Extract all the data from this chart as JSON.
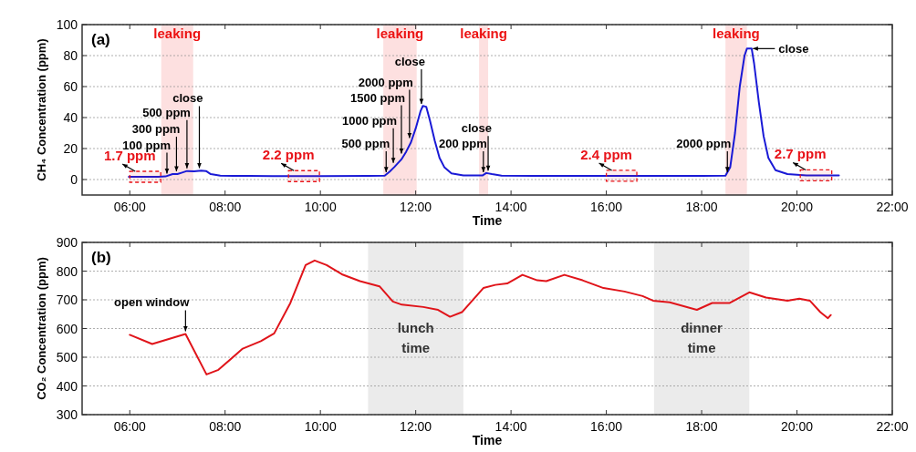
{
  "chart_data": [
    {
      "type": "line",
      "xlabel": "Time",
      "ylabel": "CH₄ Concentration (ppm)",
      "xlim": [
        5,
        22
      ],
      "ylim": [
        -10,
        100
      ],
      "xticks": [
        {
          "value": 6,
          "label": "06:00"
        },
        {
          "value": 8,
          "label": "08:00"
        },
        {
          "value": 10,
          "label": "10:00"
        },
        {
          "value": 12,
          "label": "12:00"
        },
        {
          "value": 14,
          "label": "14:00"
        },
        {
          "value": 16,
          "label": "16:00"
        },
        {
          "value": 18,
          "label": "18:00"
        },
        {
          "value": 20,
          "label": "20:00"
        },
        {
          "value": 22,
          "label": "22:00"
        }
      ],
      "yticks": [
        0,
        20,
        40,
        60,
        80,
        100
      ],
      "grid": "y",
      "marker": "none",
      "line_style": "solid",
      "series": [
        {
          "color": "#1a1ad6",
          "x": [
            5.98,
            6.6,
            6.75,
            6.9,
            7.0,
            7.1,
            7.2,
            7.35,
            7.5,
            7.6,
            7.7,
            7.9,
            8.5,
            9.0,
            10,
            11,
            11.35,
            11.45,
            11.55,
            11.7,
            11.8,
            11.9,
            12.0,
            12.1,
            12.15,
            12.22,
            12.3,
            12.4,
            12.5,
            12.6,
            12.75,
            13.0,
            13.4,
            13.48,
            13.6,
            13.8,
            14.5,
            16,
            17,
            18,
            18.5,
            18.6,
            18.7,
            18.8,
            18.9,
            18.95,
            19.05,
            19.1,
            19.2,
            19.3,
            19.4,
            19.55,
            19.8,
            20.2,
            20.88
          ],
          "values": [
            1.7,
            1.8,
            2,
            3.5,
            3.5,
            4.5,
            5.5,
            5.3,
            5.7,
            5.5,
            3.5,
            2.5,
            2.3,
            2.2,
            2.2,
            2.3,
            2.5,
            5,
            8,
            13,
            18,
            24,
            33,
            44,
            47.5,
            47,
            38,
            25,
            14,
            8,
            4,
            2.6,
            2.6,
            4.2,
            3.5,
            2.5,
            2.4,
            2.4,
            2.4,
            2.4,
            2.5,
            8,
            30,
            60,
            80,
            84.5,
            84.5,
            75,
            50,
            28,
            14,
            6,
            3.5,
            2.7,
            2.7
          ]
        }
      ],
      "bands": [
        {
          "axis": "x",
          "from": 6.66,
          "to": 7.33,
          "label": "leaking",
          "color": "#fde0e0"
        },
        {
          "axis": "x",
          "from": 11.32,
          "to": 12.02,
          "label": "leaking",
          "color": "#fde0e0"
        },
        {
          "axis": "x",
          "from": 13.33,
          "to": 13.52,
          "label": "leaking",
          "color": "#fde0e0"
        },
        {
          "axis": "x",
          "from": 18.5,
          "to": 18.95,
          "label": "leaking",
          "color": "#fde0e0"
        },
        {
          "axis": "x",
          "from": 6.0,
          "to": 6.65,
          "label": "1.7 ppm",
          "color": "#e8141a"
        },
        {
          "axis": "x",
          "from": 9.33,
          "to": 9.98,
          "label": "2.2 ppm",
          "color": "#e8141a"
        },
        {
          "axis": "x",
          "from": 16.0,
          "to": 16.64,
          "label": "2.4 ppm",
          "color": "#e8141a"
        },
        {
          "axis": "x",
          "from": 20.07,
          "to": 20.73,
          "label": "2.7 ppm",
          "color": "#e8141a"
        }
      ],
      "annotations": [
        "(a)",
        {
          "text": "100 ppm",
          "x": 6.78,
          "y": 2
        },
        {
          "text": "300 ppm",
          "x": 6.98,
          "y": 3.5
        },
        {
          "text": "500 ppm",
          "x": 7.2,
          "y": 5.5
        },
        {
          "text": "close",
          "x": 7.46,
          "y": 5.6
        },
        {
          "text": "500 ppm",
          "x": 11.38,
          "y": 3
        },
        {
          "text": "1000 ppm",
          "x": 11.53,
          "y": 9
        },
        {
          "text": "1500 ppm",
          "x": 11.7,
          "y": 15
        },
        {
          "text": "2000 ppm",
          "x": 11.87,
          "y": 25
        },
        {
          "text": "close",
          "x": 12.12,
          "y": 47
        },
        {
          "text": "200 ppm",
          "x": 13.42,
          "y": 3
        },
        {
          "text": "close",
          "x": 13.52,
          "y": 4
        },
        {
          "text": "2000 ppm",
          "x": 18.54,
          "y": 3
        },
        {
          "text": "close",
          "x": 19.0,
          "y": 84.5
        }
      ]
    },
    {
      "type": "line",
      "xlabel": "Time",
      "ylabel": "CO₂ Concentration (ppm)",
      "xlim": [
        5,
        22
      ],
      "ylim": [
        300,
        900
      ],
      "xticks": [
        {
          "value": 6,
          "label": "06:00"
        },
        {
          "value": 8,
          "label": "08:00"
        },
        {
          "value": 10,
          "label": "10:00"
        },
        {
          "value": 12,
          "label": "12:00"
        },
        {
          "value": 14,
          "label": "14:00"
        },
        {
          "value": 16,
          "label": "16:00"
        },
        {
          "value": 18,
          "label": "18:00"
        },
        {
          "value": 20,
          "label": "20:00"
        },
        {
          "value": 22,
          "label": "22:00"
        }
      ],
      "yticks": [
        300,
        400,
        500,
        600,
        700,
        800,
        900
      ],
      "grid": "y",
      "marker": "none",
      "line_style": "solid",
      "series": [
        {
          "color": "#e0141a",
          "x": [
            6.0,
            6.47,
            7.17,
            7.61,
            7.86,
            8.37,
            8.75,
            9.03,
            9.37,
            9.69,
            9.88,
            10.13,
            10.45,
            10.83,
            11.24,
            11.52,
            11.71,
            12.16,
            12.47,
            12.72,
            12.97,
            13.42,
            13.67,
            13.92,
            14.24,
            14.55,
            14.74,
            15.12,
            15.5,
            15.94,
            16.38,
            16.76,
            16.98,
            17.33,
            17.9,
            18.22,
            18.59,
            19.0,
            19.35,
            19.8,
            20.05,
            20.27,
            20.49,
            20.65,
            20.71
          ],
          "values": [
            578,
            546,
            581,
            440,
            456,
            530,
            556,
            583,
            689,
            821,
            837,
            821,
            789,
            765,
            747,
            694,
            683,
            675,
            665,
            641,
            657,
            741,
            752,
            757,
            787,
            768,
            765,
            787,
            768,
            741,
            729,
            713,
            697,
            691,
            665,
            689,
            689,
            726,
            708,
            697,
            704,
            697,
            657,
            636,
            647
          ]
        }
      ],
      "bands": [
        {
          "axis": "x",
          "from": 11,
          "to": 13,
          "label": "lunch time",
          "color": "#ebebeb"
        },
        {
          "axis": "x",
          "from": 17,
          "to": 19,
          "label": "dinner time",
          "color": "#ebebeb"
        }
      ],
      "annotations": [
        "(b)",
        {
          "text": "open window",
          "x": 7.17,
          "y": 581
        }
      ]
    }
  ]
}
